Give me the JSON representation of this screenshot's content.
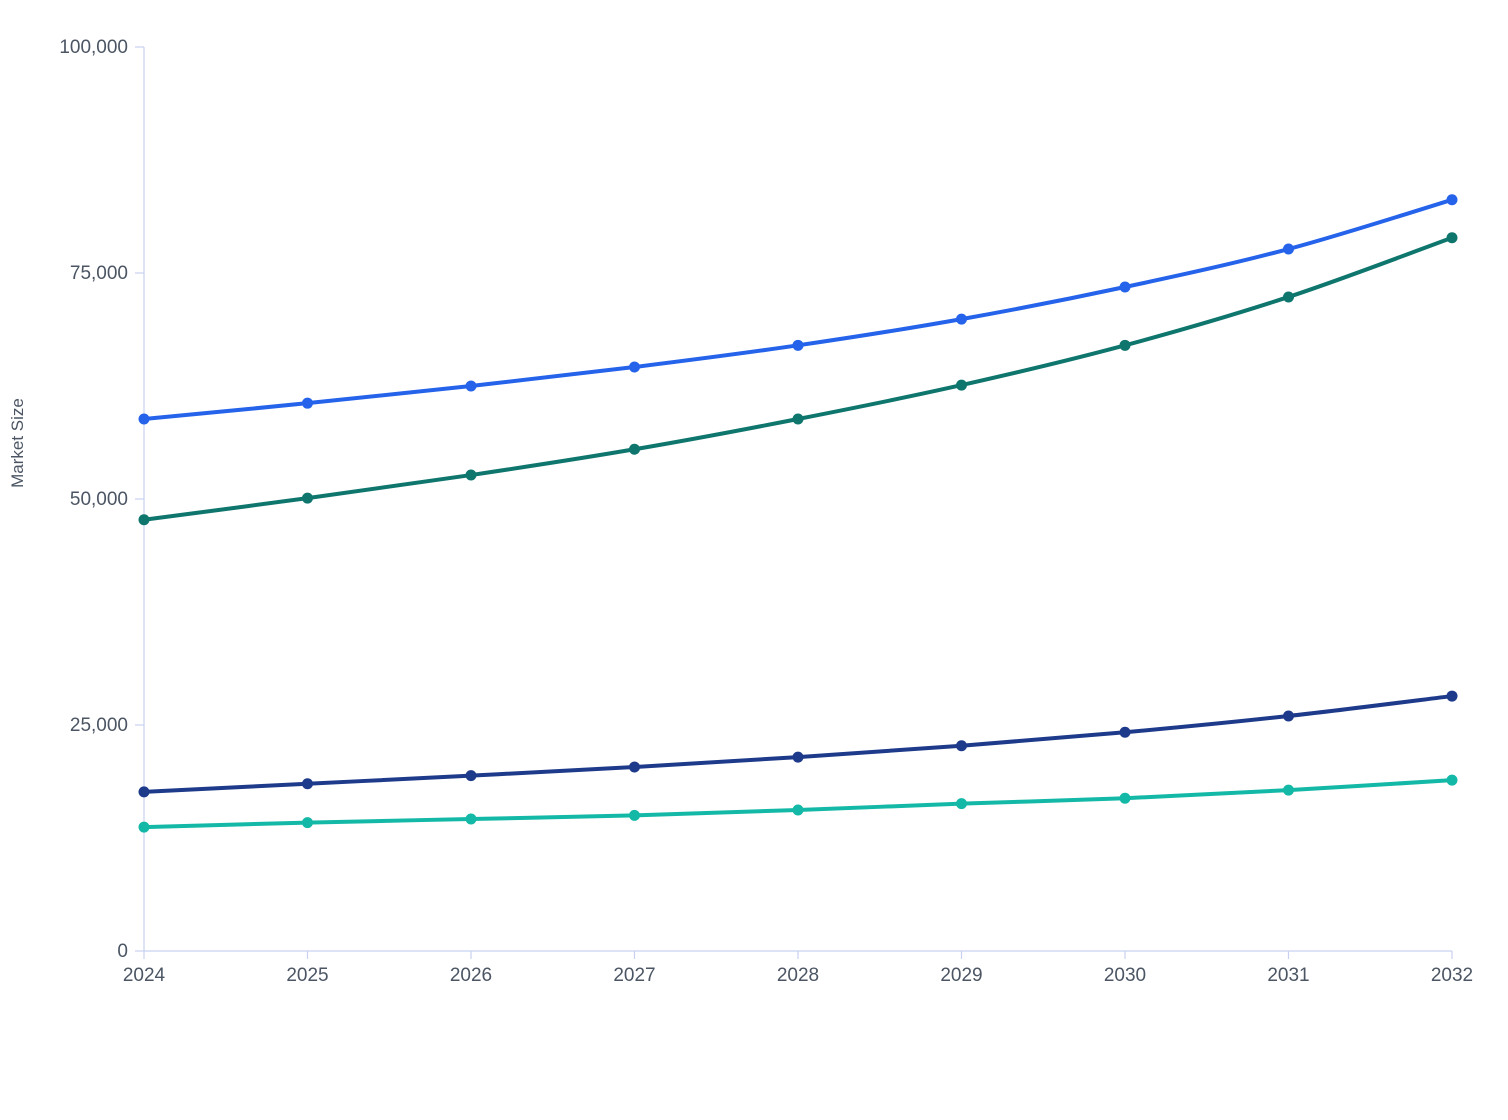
{
  "chart_data": {
    "type": "line",
    "title": "",
    "xlabel": "",
    "ylabel": "Market Size",
    "x": [
      "2024",
      "2025",
      "2026",
      "2027",
      "2028",
      "2029",
      "2030",
      "2031",
      "2032"
    ],
    "ylim": [
      0,
      100000
    ],
    "yticks": [
      0,
      25000,
      50000,
      75000,
      100000
    ],
    "ytick_labels": [
      "0",
      "25,000",
      "50,000",
      "75,000",
      "100,000"
    ],
    "grid": false,
    "legend": "none",
    "axis_color": "#c7d2f0",
    "series": [
      {
        "color": "#2563eb",
        "values": [
          58850,
          60600,
          62500,
          64600,
          67000,
          69900,
          73450,
          77650,
          83100
        ]
      },
      {
        "color": "#0f766e",
        "values": [
          47700,
          50100,
          52650,
          55500,
          58850,
          62600,
          67000,
          72350,
          78900
        ]
      },
      {
        "color": "#1e3a8a",
        "values": [
          17600,
          18500,
          19400,
          20350,
          21450,
          22700,
          24200,
          26000,
          28200
        ]
      },
      {
        "color": "#14b8a6",
        "values": [
          13700,
          14200,
          14600,
          15000,
          15600,
          16300,
          16900,
          17800,
          18900
        ]
      }
    ]
  }
}
